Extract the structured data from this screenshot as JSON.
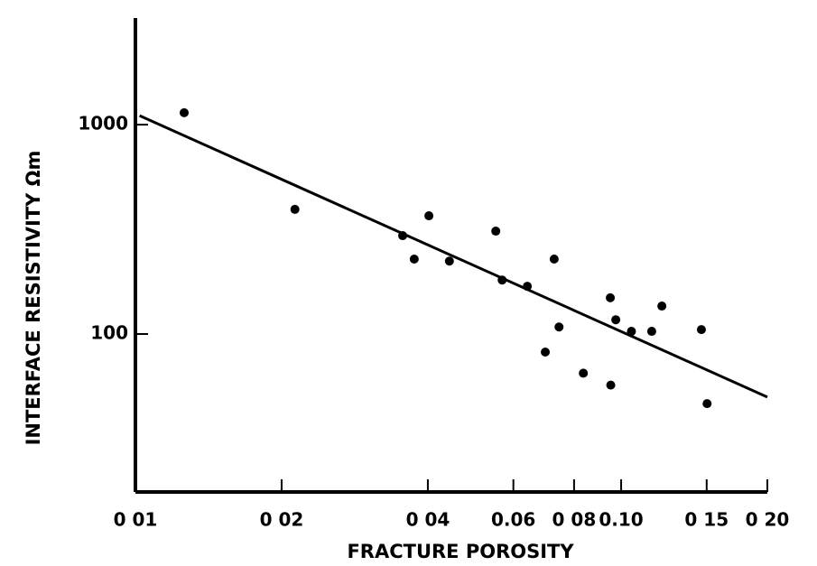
{
  "chart_data": {
    "type": "scatter",
    "x_label": "FRACTURE POROSITY",
    "y_label": "INTERFACE RESISTIVITY Ωm",
    "x_log": true,
    "y_log": true,
    "color": "#000000",
    "xlim": [
      0.01,
      0.2
    ],
    "ylim": [
      17.6,
      3230
    ],
    "xticks": [
      {
        "value": 0.01,
        "label": "0 01"
      },
      {
        "value": 0.02,
        "label": "0 02"
      },
      {
        "value": 0.04,
        "label": "0 04"
      },
      {
        "value": 0.06,
        "label": "0.06"
      },
      {
        "value": 0.08,
        "label": "0 08"
      },
      {
        "value": 0.1,
        "label": "0.10"
      },
      {
        "value": 0.15,
        "label": "0 15"
      },
      {
        "value": 0.2,
        "label": "0 20"
      }
    ],
    "yticks": [
      100,
      1000
    ],
    "points": {
      "x": [
        0.0126,
        0.0213,
        0.0355,
        0.0402,
        0.0375,
        0.0443,
        0.0552,
        0.0569,
        0.0641,
        0.0728,
        0.0745,
        0.0698,
        0.0836,
        0.095,
        0.0975,
        0.0952,
        0.105,
        0.1156,
        0.1213,
        0.1463,
        0.1503
      ],
      "y": [
        1140,
        394,
        295,
        367,
        228,
        223,
        310,
        181,
        169,
        228,
        108,
        82,
        65,
        149,
        117,
        57,
        103,
        103,
        136,
        105,
        46.5
      ]
    },
    "fit_line": {
      "x": [
        0.0102,
        0.2
      ],
      "y": [
        1104,
        50
      ]
    }
  }
}
